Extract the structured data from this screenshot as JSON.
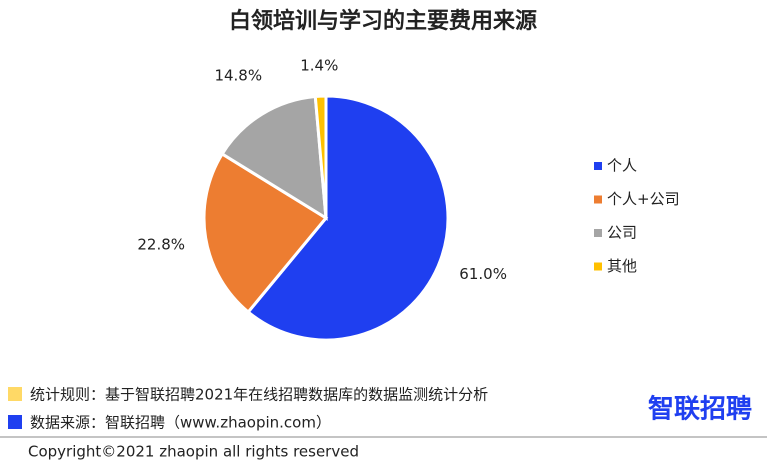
{
  "chart_data": {
    "type": "pie",
    "title": "白领培训与学习的主要费用来源",
    "categories": [
      "个人",
      "个人+公司",
      "公司",
      "其他"
    ],
    "values": [
      61.0,
      22.8,
      14.8,
      1.4
    ],
    "value_labels": [
      "61.0%",
      "22.8%",
      "14.8%",
      "1.4%"
    ],
    "colors": [
      "#1f3ff0",
      "#ed7d31",
      "#a5a5a5",
      "#ffc000"
    ],
    "legend": "right"
  },
  "footer": {
    "rule": "统计规则：基于智联招聘2021年在线招聘数据库的数据监测统计分析",
    "source": "数据来源：智联招聘（www.zhaopin.com）",
    "copyright": "Copyright©2021 zhaopin all rights reserved",
    "logo": "智联招聘"
  }
}
